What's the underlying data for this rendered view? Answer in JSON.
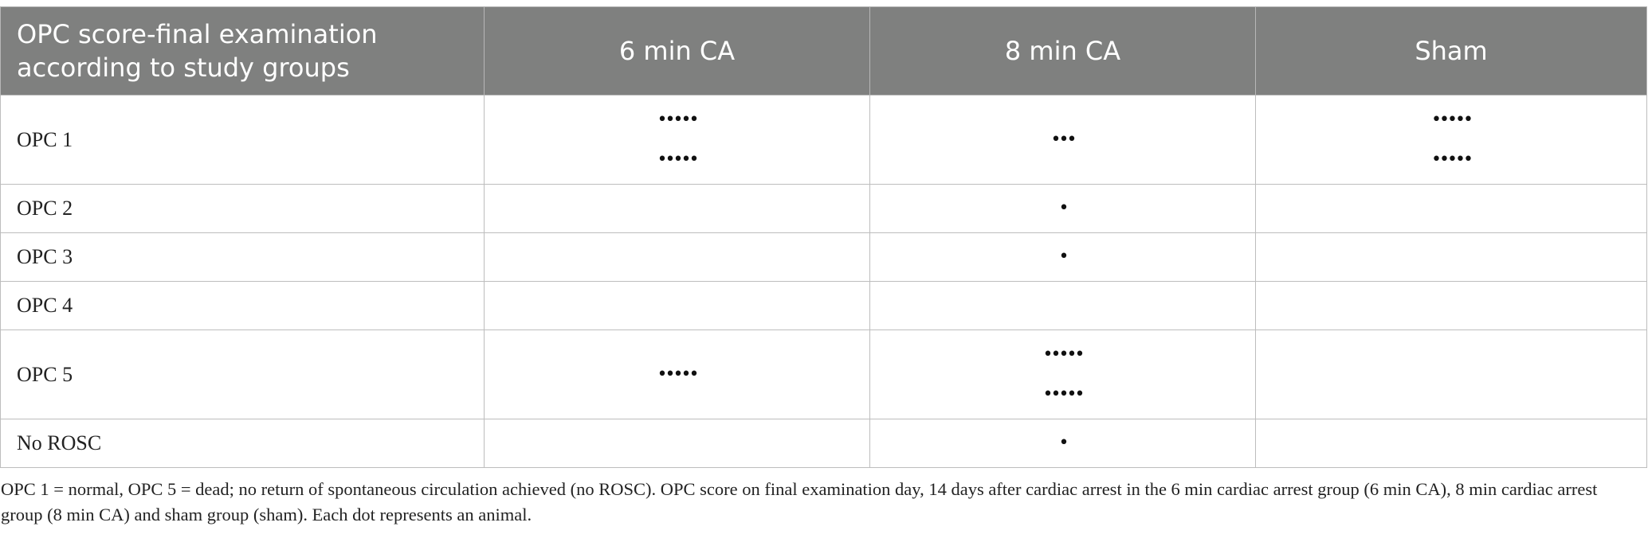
{
  "table": {
    "headers": [
      "OPC score-final examination according to study groups",
      "6 min CA",
      "8 min CA",
      "Sham"
    ],
    "rows": [
      {
        "label": "OPC 1",
        "cells": [
          [
            "•••••",
            "•••••"
          ],
          [
            "•••"
          ],
          [
            "•••••",
            "•••••"
          ]
        ]
      },
      {
        "label": "OPC 2",
        "cells": [
          [],
          [
            "•"
          ],
          []
        ]
      },
      {
        "label": "OPC 3",
        "cells": [
          [],
          [
            "•"
          ],
          []
        ]
      },
      {
        "label": "OPC 4",
        "cells": [
          [],
          [],
          []
        ]
      },
      {
        "label": "OPC 5",
        "cells": [
          [
            "•••••"
          ],
          [
            "•••••",
            "•••••"
          ],
          []
        ]
      },
      {
        "label": "No ROSC",
        "cells": [
          [],
          [
            "•"
          ],
          []
        ]
      }
    ]
  },
  "footnote": "OPC 1 = normal, OPC 5 = dead; no return of spontaneous circulation achieved (no ROSC). OPC score on final examination day, 14 days after cardiac arrest in the 6 min cardiac arrest group (6 min CA), 8 min cardiac arrest group (8 min CA) and sham group (sham). Each dot represents an animal."
}
